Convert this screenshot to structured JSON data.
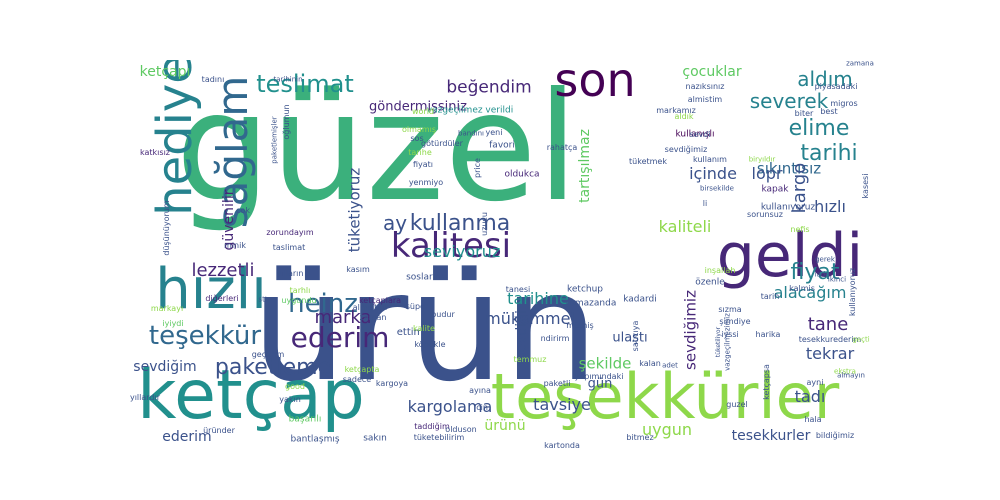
{
  "palette": {
    "green": "#3bb07c",
    "navy": "#3b528b",
    "lime": "#8ed84a",
    "teal": "#26828e",
    "tealdark": "#21908d",
    "purple": "#472878",
    "dark": "#440154",
    "slate": "#31688e",
    "midgreen": "#5ec962",
    "yellow": "#e3e418"
  },
  "words": [
    {
      "text": "güzel",
      "color": "green"
    },
    {
      "text": "ürün",
      "color": "navy"
    },
    {
      "text": "teşekkürler",
      "color": "lime"
    },
    {
      "text": "ketçap",
      "color": "tealdark"
    },
    {
      "text": "hızlı",
      "color": "teal"
    },
    {
      "text": "geldi",
      "color": "purple"
    },
    {
      "text": "hediye",
      "color": "teal"
    },
    {
      "text": "sağlam",
      "color": "slate"
    },
    {
      "text": "son",
      "color": "dark"
    },
    {
      "text": "kalitesi",
      "color": "purple"
    },
    {
      "text": "teşekkür",
      "color": "slate"
    },
    {
      "text": "ederim",
      "color": "purple"
    },
    {
      "text": "teslimat",
      "color": "tealdark"
    },
    {
      "text": "heinz",
      "color": "slate"
    },
    {
      "text": "kullanma",
      "color": "navy"
    },
    {
      "text": "paketleme",
      "color": "navy"
    },
    {
      "text": "lezzetli",
      "color": "purple"
    },
    {
      "text": "marka",
      "color": "purple"
    },
    {
      "text": "beğendim",
      "color": "purple"
    },
    {
      "text": "aldım",
      "color": "teal"
    },
    {
      "text": "severek",
      "color": "teal"
    },
    {
      "text": "elime",
      "color": "teal"
    },
    {
      "text": "tarihi",
      "color": "teal"
    },
    {
      "text": "fiyat",
      "color": "teal"
    },
    {
      "text": "ay",
      "color": "navy"
    },
    {
      "text": "seviyoruz",
      "color": "tealdark"
    },
    {
      "text": "kaliteli",
      "color": "lime"
    },
    {
      "text": "tarihine",
      "color": "tealdark"
    },
    {
      "text": "mükemmel",
      "color": "navy"
    },
    {
      "text": "alacağım",
      "color": "teal"
    },
    {
      "text": "tane",
      "color": "purple"
    },
    {
      "text": "tekrar",
      "color": "navy"
    },
    {
      "text": "tavsiye",
      "color": "navy"
    },
    {
      "text": "kargolama",
      "color": "navy"
    },
    {
      "text": "uygun",
      "color": "lime"
    },
    {
      "text": "ürünü",
      "color": "lime"
    },
    {
      "text": "ederim",
      "color": "navy"
    },
    {
      "text": "tesekkurler",
      "color": "navy"
    },
    {
      "text": "çocuklar",
      "color": "midgreen"
    },
    {
      "text": "ketçapı",
      "color": "midgreen"
    },
    {
      "text": "göndermişsiniz",
      "color": "purple"
    },
    {
      "text": "sıkıntısız",
      "color": "slate"
    },
    {
      "text": "içinde",
      "color": "navy"
    },
    {
      "text": "lopr",
      "color": "navy"
    },
    {
      "text": "kargo",
      "color": "navy"
    },
    {
      "text": "hızlı",
      "color": "navy"
    },
    {
      "text": "tüketiyoruz",
      "color": "navy"
    },
    {
      "text": "tartışılmaz",
      "color": "midgreen"
    },
    {
      "text": "güvenilir",
      "color": "purple"
    },
    {
      "text": "sevdiği",
      "color": "navy"
    },
    {
      "text": "sevdiğimiz",
      "color": "purple"
    },
    {
      "text": "şekilde",
      "color": "midgreen"
    },
    {
      "text": "gün",
      "color": "navy"
    },
    {
      "text": "sevdiğim",
      "color": "navy"
    },
    {
      "text": "tadı",
      "color": "navy"
    },
    {
      "text": "ulaştı",
      "color": "navy"
    },
    {
      "text": "memnunum",
      "color": "dark"
    },
    {
      "text": "göndermişler",
      "color": "midgreen"
    },
    {
      "text": "kampanyada",
      "color": "dark"
    },
    {
      "text": "çocukların",
      "color": "purple"
    },
    {
      "text": "aylık",
      "color": "purple"
    },
    {
      "text": "vazgeçilmez verildi",
      "color": "tealdark"
    },
    {
      "text": "favori",
      "color": "navy"
    },
    {
      "text": "oldukca",
      "color": "purple"
    },
    {
      "text": "kullanışlı",
      "color": "dark"
    },
    {
      "text": "kullanıyoruz",
      "color": "navy"
    },
    {
      "text": "kapak",
      "color": "purple"
    },
    {
      "text": "kasım",
      "color": "navy"
    },
    {
      "text": "ketchup",
      "color": "navy"
    },
    {
      "text": "soslarım",
      "color": "navy"
    },
    {
      "text": "ramazanda",
      "color": "navy"
    },
    {
      "text": "kadardi",
      "color": "navy"
    },
    {
      "text": "özenle",
      "color": "navy"
    },
    {
      "text": "tarih",
      "color": "navy"
    },
    {
      "text": "zorundayım",
      "color": "purple"
    },
    {
      "text": "taslimat",
      "color": "navy"
    },
    {
      "text": "yılların",
      "color": "navy"
    },
    {
      "text": "diğerleri",
      "color": "purple"
    },
    {
      "text": "katkısız",
      "color": "purple"
    },
    {
      "text": "cok",
      "color": "navy"
    },
    {
      "text": "minik",
      "color": "navy"
    },
    {
      "text": "ketçaplara",
      "color": "purple"
    },
    {
      "text": "tarhlı",
      "color": "lime"
    },
    {
      "text": "uygundu",
      "color": "midgreen"
    },
    {
      "text": "almıştım",
      "color": "navy"
    },
    {
      "text": "zaman",
      "color": "navy"
    },
    {
      "text": "iyiydi",
      "color": "midgreen"
    },
    {
      "text": "markayı",
      "color": "lime"
    },
    {
      "text": "stt",
      "color": "navy"
    },
    {
      "text": "yıllardır",
      "color": "navy"
    },
    {
      "text": "geçerim",
      "color": "navy"
    },
    {
      "text": "ketçapta",
      "color": "lime"
    },
    {
      "text": "sadece",
      "color": "navy"
    },
    {
      "text": "kargoya",
      "color": "navy"
    },
    {
      "text": "yakın",
      "color": "navy"
    },
    {
      "text": "başarılı",
      "color": "midgreen"
    },
    {
      "text": "bantlaşmış",
      "color": "navy"
    },
    {
      "text": "sakın",
      "color": "navy"
    },
    {
      "text": "üründer",
      "color": "navy"
    },
    {
      "text": "taddiğim",
      "color": "purple"
    },
    {
      "text": "tüketebilirim",
      "color": "navy"
    },
    {
      "text": "kartonda",
      "color": "navy"
    },
    {
      "text": "bitmez",
      "color": "navy"
    },
    {
      "text": "bildiğimiz",
      "color": "navy"
    },
    {
      "text": "budur",
      "color": "navy"
    },
    {
      "text": "olduson",
      "color": "navy"
    },
    {
      "text": "süper",
      "color": "navy"
    },
    {
      "text": "ettim",
      "color": "navy"
    },
    {
      "text": "müthiş",
      "color": "navy"
    },
    {
      "text": "harika",
      "color": "navy"
    },
    {
      "text": "sızma",
      "color": "navy"
    },
    {
      "text": "şimdiye",
      "color": "navy"
    },
    {
      "text": "iyssi",
      "color": "navy"
    },
    {
      "text": "tesekkurederim",
      "color": "navy"
    },
    {
      "text": "almayın",
      "color": "navy"
    },
    {
      "text": "beğendik",
      "color": "navy"
    },
    {
      "text": "nefis",
      "color": "lime"
    },
    {
      "text": "sorunsuz",
      "color": "navy"
    },
    {
      "text": "oğlumun",
      "color": "navy"
    },
    {
      "text": "paketlemişler",
      "color": "navy"
    },
    {
      "text": "düşünüyorum",
      "color": "navy"
    },
    {
      "text": "almistim",
      "color": "navy"
    },
    {
      "text": "sevdi",
      "color": "navy"
    },
    {
      "text": "nazıksınız",
      "color": "navy"
    },
    {
      "text": "piyasadaki",
      "color": "navy"
    },
    {
      "text": "best",
      "color": "navy"
    },
    {
      "text": "biter",
      "color": "navy"
    },
    {
      "text": "migros",
      "color": "navy"
    },
    {
      "text": "ndirimden",
      "color": "navy"
    },
    {
      "text": "world",
      "color": "lime"
    },
    {
      "text": "olmamış",
      "color": "lime"
    },
    {
      "text": "sos",
      "color": "navy"
    },
    {
      "text": "götürdüler",
      "color": "navy"
    },
    {
      "text": "yeni",
      "color": "navy"
    },
    {
      "text": "tarihe",
      "color": "lime"
    },
    {
      "text": "fiyatı",
      "color": "navy"
    },
    {
      "text": "yenmiyo",
      "color": "navy"
    },
    {
      "text": "tüketmek",
      "color": "navy"
    },
    {
      "text": "rahatça",
      "color": "navy"
    },
    {
      "text": "price",
      "color": "navy"
    },
    {
      "text": "tadını",
      "color": "navy"
    },
    {
      "text": "tarihinin",
      "color": "navy"
    },
    {
      "text": "bandını",
      "color": "navy"
    },
    {
      "text": "markamız",
      "color": "navy"
    },
    {
      "text": "sevdiğimiz",
      "color": "navy"
    },
    {
      "text": "aldık",
      "color": "lime"
    },
    {
      "text": "kullanım",
      "color": "navy"
    },
    {
      "text": "uzucu",
      "color": "navy"
    },
    {
      "text": "li",
      "color": "navy"
    },
    {
      "text": "kalite",
      "color": "lime"
    },
    {
      "text": "ndirirm",
      "color": "navy"
    },
    {
      "text": "tanesi",
      "color": "navy"
    },
    {
      "text": "kalmis",
      "color": "navy"
    },
    {
      "text": "temmuz",
      "color": "lime"
    },
    {
      "text": "satıcıya",
      "color": "navy"
    },
    {
      "text": "köpükle",
      "color": "navy"
    },
    {
      "text": "yapımındaki",
      "color": "navy"
    },
    {
      "text": "paketli",
      "color": "navy"
    },
    {
      "text": "ayına",
      "color": "navy"
    },
    {
      "text": "icin",
      "color": "navy"
    },
    {
      "text": "good",
      "color": "lime"
    },
    {
      "text": "ketçapsa",
      "color": "navy"
    },
    {
      "text": "guzel",
      "color": "navy"
    },
    {
      "text": "ayni",
      "color": "navy"
    },
    {
      "text": "kalan",
      "color": "navy"
    },
    {
      "text": "hala",
      "color": "navy"
    },
    {
      "text": "gerek",
      "color": "navy"
    },
    {
      "text": "iade",
      "color": "navy"
    },
    {
      "text": "ikinci",
      "color": "navy"
    },
    {
      "text": "kasesi",
      "color": "navy"
    },
    {
      "text": "kullanıyoruz",
      "color": "navy"
    },
    {
      "text": "inşallah",
      "color": "lime"
    },
    {
      "text": "geçti",
      "color": "lime"
    },
    {
      "text": "ekstra",
      "color": "lime"
    },
    {
      "text": "biryıldır",
      "color": "lime"
    },
    {
      "text": "birsekilde",
      "color": "navy"
    },
    {
      "text": "vazgeçilmezimiz",
      "color": "navy"
    },
    {
      "text": "zamana",
      "color": "navy"
    },
    {
      "text": "adet",
      "color": "navy"
    },
    {
      "text": "tüketiliyor",
      "color": "navy"
    }
  ]
}
